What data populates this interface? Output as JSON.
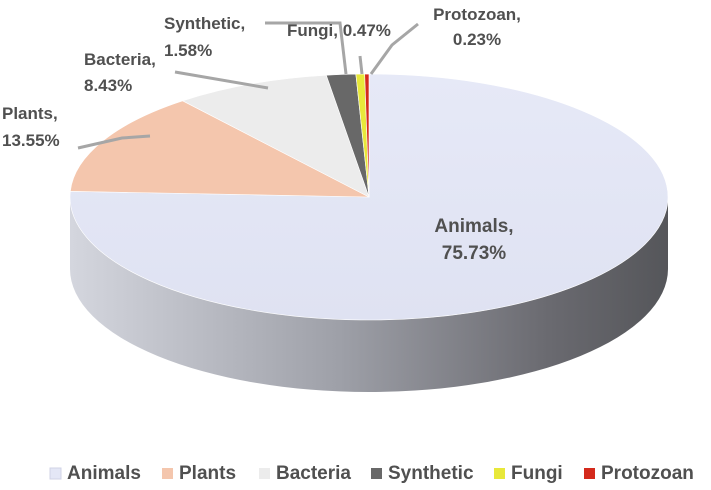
{
  "chart_data": {
    "type": "pie",
    "style": "3d",
    "title": "",
    "legend_position": "bottom",
    "slices": [
      {
        "name": "Animals",
        "value": 75.73,
        "label_value": "75.73%",
        "color": "#e4e7f6"
      },
      {
        "name": "Plants",
        "value": 13.55,
        "label_value": "13.55%",
        "color": "#f4c6ad"
      },
      {
        "name": "Bacteria",
        "value": 8.43,
        "label_value": "8.43%",
        "color": "#ececec"
      },
      {
        "name": "Synthetic",
        "value": 1.58,
        "label_value": "1.58%",
        "color": "#686868"
      },
      {
        "name": "Fungi",
        "value": 0.47,
        "label_value": "0.47%",
        "color": "#e8e83a"
      },
      {
        "name": "Protozoan",
        "value": 0.23,
        "label_value": "0.23%",
        "color": "#d42a1c"
      }
    ],
    "legend": [
      "Animals",
      "Plants",
      "Bacteria",
      "Synthetic",
      "Fungi",
      "Protozoan"
    ]
  }
}
